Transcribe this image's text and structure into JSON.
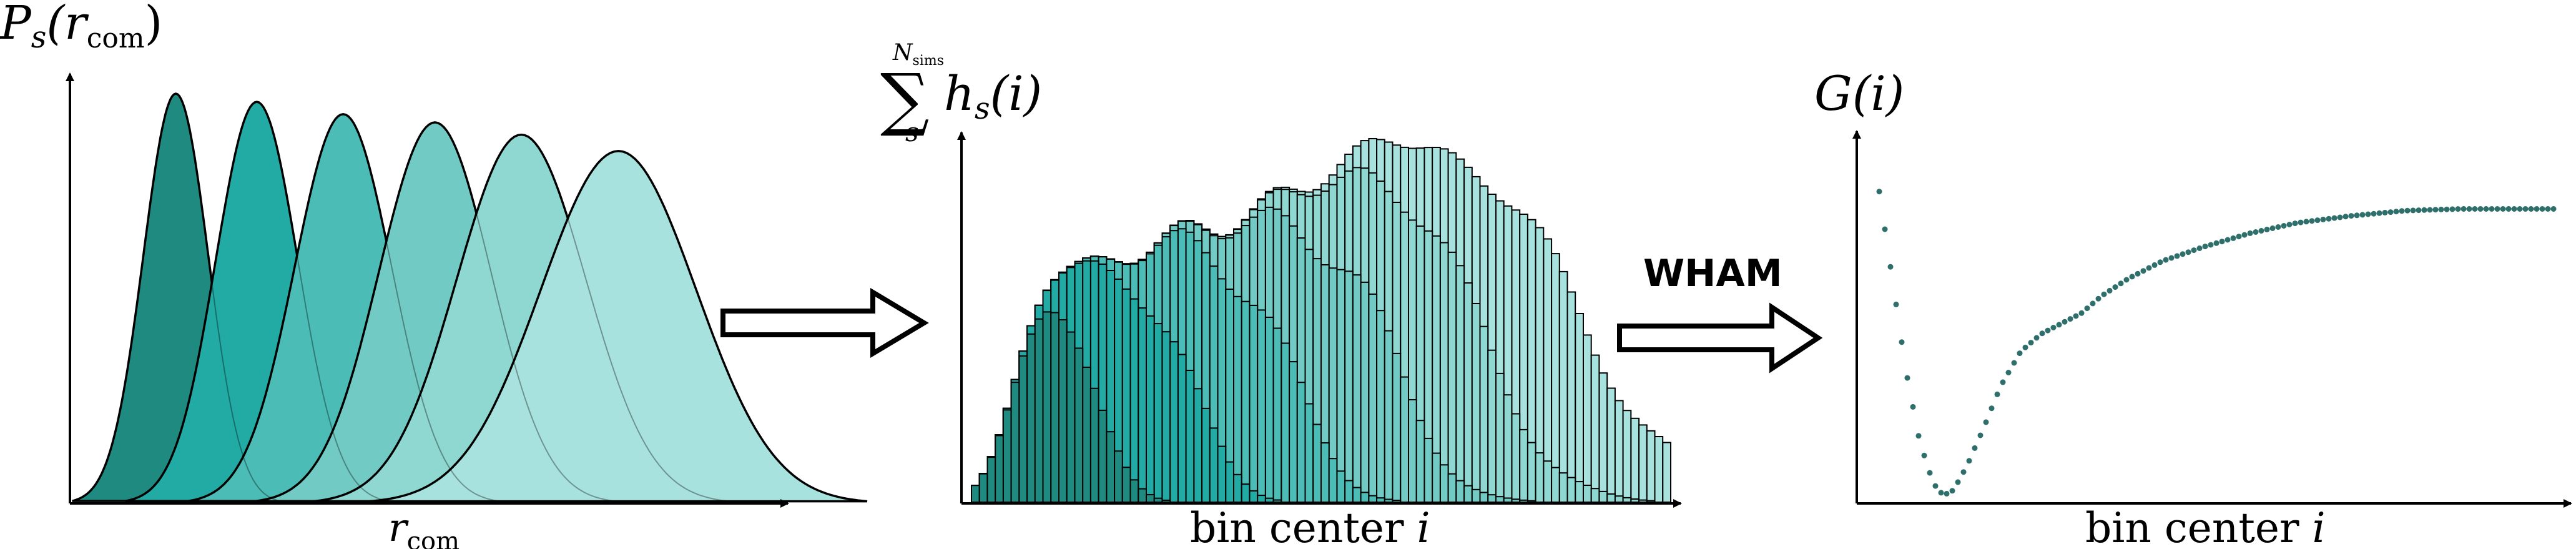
{
  "colors": {
    "windows": [
      "#1f8a80",
      "#22aba4",
      "#4bbdb6",
      "#71cbc4",
      "#8ed8d1",
      "#a8e2de"
    ],
    "outline": "#000000",
    "dots": "#2e6e6b",
    "background": "#ffffff"
  },
  "panel1": {
    "ylabel_main": "P",
    "ylabel_sub": "s",
    "ylabel_arg": "(r",
    "ylabel_arg_sub": "com",
    "ylabel_close": ")",
    "xlabel_main": "r",
    "xlabel_sub": "com",
    "distributions": [
      {
        "center": 0.9,
        "width": 0.3,
        "height": 1.0
      },
      {
        "center": 1.65,
        "width": 0.38,
        "height": 0.98
      },
      {
        "center": 2.45,
        "width": 0.45,
        "height": 0.95
      },
      {
        "center": 3.3,
        "width": 0.52,
        "height": 0.93
      },
      {
        "center": 4.1,
        "width": 0.6,
        "height": 0.9
      },
      {
        "center": 5.0,
        "width": 0.72,
        "height": 0.86
      }
    ],
    "xlim": [
      0,
      6.5
    ]
  },
  "arrow1": {
    "icon": "right-arrow-icon"
  },
  "panel2": {
    "ylabel_sum": "∑",
    "ylabel_sum_top": "N",
    "ylabel_sum_top_sub": "sims",
    "ylabel_sum_bottom": "s",
    "ylabel_h": "h",
    "ylabel_h_sub": "s",
    "ylabel_arg": "(i)",
    "xlabel": "bin center ",
    "xlabel_italic": "i",
    "bins": 88
  },
  "arrow2": {
    "label": "WHAM",
    "icon": "right-arrow-icon"
  },
  "panel3": {
    "ylabel": "G(i)",
    "xlabel": "bin center ",
    "xlabel_italic": "i",
    "curve": [
      [
        0.0,
        0.88
      ],
      [
        0.02,
        0.62
      ],
      [
        0.04,
        0.36
      ],
      [
        0.06,
        0.16
      ],
      [
        0.08,
        0.04
      ],
      [
        0.095,
        0.005
      ],
      [
        0.11,
        0.02
      ],
      [
        0.13,
        0.09
      ],
      [
        0.155,
        0.2
      ],
      [
        0.18,
        0.32
      ],
      [
        0.21,
        0.42
      ],
      [
        0.24,
        0.47
      ],
      [
        0.27,
        0.5
      ],
      [
        0.3,
        0.53
      ],
      [
        0.33,
        0.58
      ],
      [
        0.37,
        0.63
      ],
      [
        0.42,
        0.68
      ],
      [
        0.48,
        0.72
      ],
      [
        0.55,
        0.76
      ],
      [
        0.62,
        0.79
      ],
      [
        0.7,
        0.81
      ],
      [
        0.78,
        0.825
      ],
      [
        0.86,
        0.83
      ],
      [
        0.93,
        0.83
      ],
      [
        1.0,
        0.83
      ]
    ]
  }
}
